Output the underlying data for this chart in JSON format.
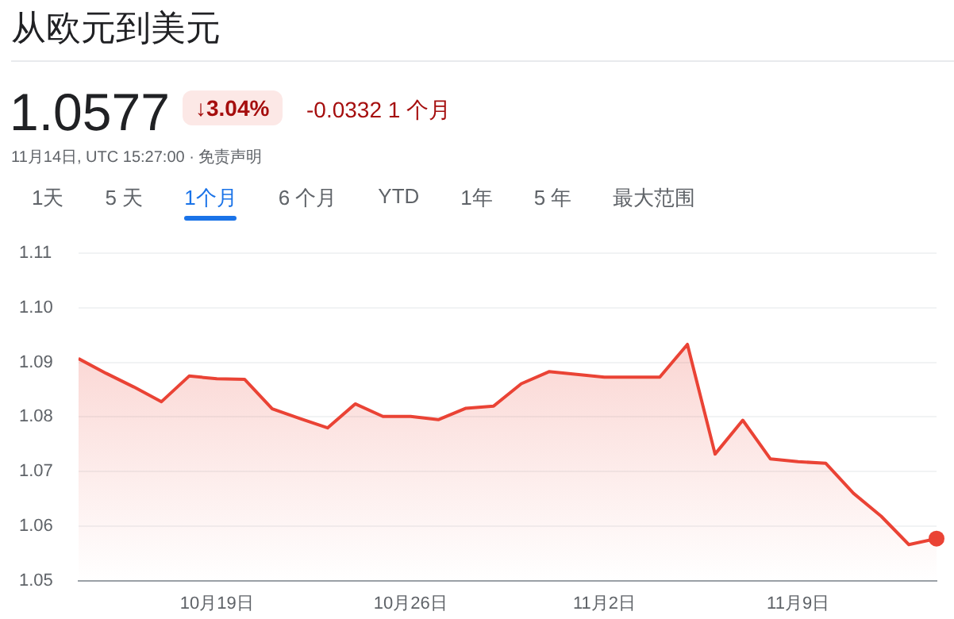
{
  "chart_data": {
    "type": "area",
    "title": "从欧元到美元",
    "annotations": [
      "1.0577",
      "↓3.04%",
      "-0.0332 1 个月",
      "11月14日, UTC 15:27:00 · 免责声明",
      "1天",
      "5 天",
      "1个月",
      "6 个月",
      "YTD",
      "1年",
      "5 年",
      "最大范围"
    ],
    "x": [
      "--10-14",
      "--10-15",
      "--10-16",
      "--10-17",
      "--10-18",
      "--10-19",
      "--10-20",
      "--10-21",
      "--10-22",
      "--10-23",
      "--10-24",
      "--10-25",
      "--10-26",
      "--10-27",
      "--10-28",
      "--10-29",
      "--10-30",
      "--10-31",
      "--11-01",
      "--11-02",
      "--11-03",
      "--11-04",
      "--11-05",
      "--11-06",
      "--11-07",
      "--11-08",
      "--11-09",
      "--11-10",
      "--11-11",
      "--11-12",
      "--11-13",
      "--11-14"
    ],
    "series": [
      {
        "color": "#ea4335",
        "marker": "none",
        "values": [
          1.0907,
          1.088,
          1.0855,
          1.0828,
          1.0875,
          1.087,
          1.0869,
          1.0815,
          1.0797,
          1.078,
          1.0824,
          1.0801,
          1.0801,
          1.0795,
          1.0816,
          1.082,
          1.0861,
          1.0883,
          1.0878,
          1.0873,
          1.0873,
          1.0873,
          1.0933,
          1.0732,
          1.0794,
          1.0723,
          1.0718,
          1.0715,
          1.066,
          1.0618,
          1.0566,
          1.0577
        ]
      },
      {
        "type": "scatter",
        "color": "#ea4335",
        "marker": "circle",
        "x": [
          "--11-14"
        ],
        "values": [
          1.0577
        ]
      }
    ],
    "xlim": [
      "--10-14",
      "--11-14"
    ],
    "xticks": [
      {
        "value": "--10-19",
        "label": "10月19日"
      },
      {
        "value": "--10-26",
        "label": "10月26日"
      },
      {
        "value": "--11-02",
        "label": "11月2日"
      },
      {
        "value": "--11-09",
        "label": "11月9日"
      }
    ],
    "ylim": [
      1.05,
      1.11
    ],
    "yticks": [
      1.05,
      1.06,
      1.07,
      1.08,
      1.09,
      {
        "value": 1.1,
        "label": "1.10"
      },
      1.11
    ],
    "grid": "y"
  }
}
